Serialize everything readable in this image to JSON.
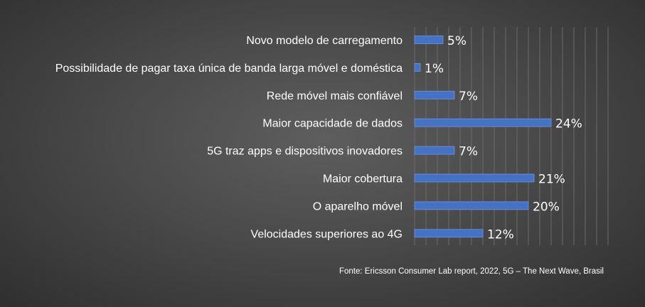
{
  "chart_data": {
    "type": "bar",
    "orientation": "horizontal",
    "categories": [
      "Novo modelo de carregamento",
      "Possibilidade de pagar taxa única de banda larga móvel e doméstica",
      "Rede móvel mais confiável",
      "Maior capacidade de dados",
      "5G traz apps e dispositivos inovadores",
      "Maior cobertura",
      "O aparelho móvel",
      "Velocidades superiores ao 4G"
    ],
    "values": [
      5,
      1,
      7,
      24,
      7,
      21,
      20,
      12
    ],
    "value_labels": [
      "5%",
      "1%",
      "7%",
      "24%",
      "7%",
      "21%",
      "20%",
      "12%"
    ],
    "unit": "%",
    "xlim": [
      0,
      34
    ],
    "grid": "vertical",
    "legend": "none",
    "colors": {
      "bar": "#4472c4",
      "bar_edge": "#6f95e0",
      "grid": "#6a6a6a",
      "text": "#ffffff"
    }
  },
  "source": "Fonte: Ericsson Consumer Lab report, 2022, 5G – The Next Wave, Brasil"
}
